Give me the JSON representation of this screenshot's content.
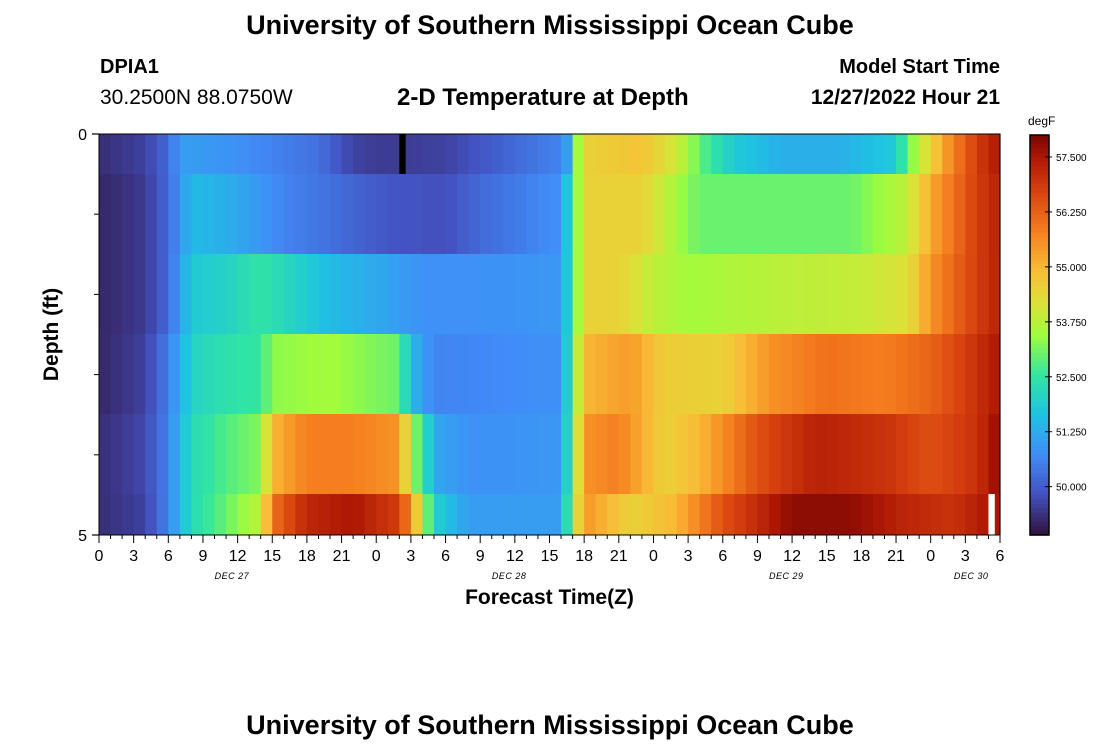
{
  "header": {
    "title": "University of Southern Mississippi Ocean Cube",
    "station_id": "DPIA1",
    "coordinates": "30.2500N  88.0750W",
    "subtitle": "2-D Temperature at Depth",
    "model_start_label": "Model Start Time",
    "model_start_value": "12/27/2022 Hour 21"
  },
  "footer": {
    "title": "University of Southern Mississippi Ocean Cube"
  },
  "chart_data": {
    "type": "heatmap",
    "title": "2-D Temperature at Depth",
    "xlabel": "Forecast Time(Z)",
    "ylabel": "Depth (ft)",
    "unit": "degF",
    "x_hour_start": 0,
    "x_hour_end": 78,
    "x_hour_step": 1,
    "x_tick_labels": [
      "0",
      "3",
      "6",
      "9",
      "12",
      "15",
      "18",
      "21",
      "0",
      "3",
      "6",
      "9",
      "12",
      "15",
      "18",
      "21",
      "0",
      "3",
      "6",
      "9",
      "12",
      "15",
      "18",
      "21",
      "0",
      "3",
      "6"
    ],
    "date_labels": [
      {
        "label": "DEC 27",
        "x_hour": 11.5
      },
      {
        "label": "DEC 28",
        "x_hour": 35.5
      },
      {
        "label": "DEC 29",
        "x_hour": 59.5
      },
      {
        "label": "DEC 30",
        "x_hour": 75.5
      }
    ],
    "y_tick_labels": [
      "0",
      "5"
    ],
    "ylim": [
      0,
      5
    ],
    "y_minor_ticks": [
      1,
      2,
      3,
      4
    ],
    "colorbar": {
      "label": "degF",
      "min": 48.9,
      "max": 58.0,
      "ticks": [
        "50.000",
        "51.250",
        "52.500",
        "53.750",
        "55.000",
        "56.250",
        "57.500"
      ]
    },
    "rows": [
      {
        "depth_band": "0-0.5",
        "knots": [
          [
            0,
            49.3
          ],
          [
            4,
            49.6
          ],
          [
            6,
            50.2
          ],
          [
            7,
            51.0
          ],
          [
            8,
            51.0
          ],
          [
            12,
            50.8
          ],
          [
            19,
            50.3
          ],
          [
            22,
            49.6
          ],
          [
            25,
            49.5
          ],
          [
            30,
            49.6
          ],
          [
            32,
            49.8
          ],
          [
            40,
            50.6
          ],
          [
            40.5,
            51.0
          ],
          [
            41,
            52.5
          ],
          [
            42,
            54.5
          ],
          [
            47,
            54.8
          ],
          [
            50,
            54.0
          ],
          [
            53,
            52.5
          ],
          [
            55,
            51.8
          ],
          [
            59,
            51.3
          ],
          [
            64,
            51.3
          ],
          [
            69,
            51.8
          ],
          [
            70,
            53.0
          ],
          [
            72,
            54.5
          ],
          [
            74,
            55.8
          ],
          [
            76,
            56.8
          ],
          [
            78,
            57.5
          ]
        ]
      },
      {
        "depth_band": "0.5-1.5",
        "knots": [
          [
            0,
            49.2
          ],
          [
            4,
            49.5
          ],
          [
            6,
            50.2
          ],
          [
            8,
            51.5
          ],
          [
            12,
            51.2
          ],
          [
            16,
            50.6
          ],
          [
            20,
            50.3
          ],
          [
            25,
            49.9
          ],
          [
            30,
            49.8
          ],
          [
            33,
            50.2
          ],
          [
            40,
            50.8
          ],
          [
            41,
            52.5
          ],
          [
            42,
            54.5
          ],
          [
            47,
            54.5
          ],
          [
            50,
            53.5
          ],
          [
            52,
            53.0
          ],
          [
            65,
            53.0
          ],
          [
            70,
            53.8
          ],
          [
            72,
            55.2
          ],
          [
            74,
            56.0
          ],
          [
            76,
            56.8
          ],
          [
            78,
            57.3
          ]
        ]
      },
      {
        "depth_band": "1.5-2.5",
        "knots": [
          [
            0,
            49.2
          ],
          [
            4,
            49.5
          ],
          [
            6,
            50.2
          ],
          [
            8,
            51.8
          ],
          [
            11,
            52.0
          ],
          [
            14,
            52.5
          ],
          [
            17,
            52.0
          ],
          [
            20,
            51.5
          ],
          [
            24,
            51.2
          ],
          [
            28,
            50.8
          ],
          [
            32,
            50.8
          ],
          [
            40,
            50.9
          ],
          [
            41,
            52.5
          ],
          [
            42,
            54.5
          ],
          [
            45,
            54.5
          ],
          [
            48,
            53.8
          ],
          [
            51,
            53.5
          ],
          [
            60,
            53.8
          ],
          [
            66,
            53.9
          ],
          [
            70,
            54.2
          ],
          [
            72,
            55.5
          ],
          [
            75,
            56.5
          ],
          [
            78,
            57.3
          ]
        ]
      },
      {
        "depth_band": "2.5-3.5",
        "knots": [
          [
            0,
            49.2
          ],
          [
            4,
            49.6
          ],
          [
            6,
            50.5
          ],
          [
            8,
            52.0
          ],
          [
            11,
            52.4
          ],
          [
            14,
            52.5
          ],
          [
            15,
            53.3
          ],
          [
            20,
            53.5
          ],
          [
            26,
            53.0
          ],
          [
            27,
            51.5
          ],
          [
            29,
            50.6
          ],
          [
            40,
            50.8
          ],
          [
            41,
            52.8
          ],
          [
            42,
            55.0
          ],
          [
            46,
            55.4
          ],
          [
            49,
            54.6
          ],
          [
            54,
            54.5
          ],
          [
            58,
            55.5
          ],
          [
            63,
            56.0
          ],
          [
            68,
            55.8
          ],
          [
            72,
            56.2
          ],
          [
            75,
            56.8
          ],
          [
            78,
            57.5
          ]
        ]
      },
      {
        "depth_band": "3.5-4.5",
        "knots": [
          [
            0,
            49.3
          ],
          [
            4,
            49.7
          ],
          [
            6,
            50.6
          ],
          [
            8,
            52.2
          ],
          [
            11,
            52.8
          ],
          [
            14,
            53.2
          ],
          [
            15,
            55.0
          ],
          [
            18,
            55.8
          ],
          [
            22,
            55.8
          ],
          [
            26,
            55.5
          ],
          [
            27,
            53.5
          ],
          [
            28,
            52.6
          ],
          [
            29,
            51.2
          ],
          [
            32,
            50.8
          ],
          [
            40,
            50.9
          ],
          [
            41,
            53.0
          ],
          [
            42,
            55.5
          ],
          [
            45,
            55.8
          ],
          [
            49,
            54.5
          ],
          [
            52,
            55.0
          ],
          [
            57,
            56.5
          ],
          [
            62,
            57.3
          ],
          [
            68,
            57.0
          ],
          [
            72,
            56.5
          ],
          [
            76,
            57.0
          ],
          [
            78,
            57.8
          ]
        ]
      },
      {
        "depth_band": "4.5-5",
        "knots": [
          [
            0,
            49.3
          ],
          [
            4,
            49.6
          ],
          [
            6,
            50.6
          ],
          [
            8,
            52.2
          ],
          [
            11,
            53.0
          ],
          [
            14,
            53.8
          ],
          [
            15,
            56.0
          ],
          [
            18,
            57.2
          ],
          [
            22,
            57.5
          ],
          [
            26,
            56.8
          ],
          [
            27,
            55.5
          ],
          [
            28,
            53.8
          ],
          [
            29,
            52.0
          ],
          [
            32,
            51.0
          ],
          [
            40,
            51.0
          ],
          [
            41,
            53.5
          ],
          [
            42,
            55.5
          ],
          [
            46,
            54.5
          ],
          [
            50,
            55.0
          ],
          [
            54,
            56.5
          ],
          [
            60,
            57.8
          ],
          [
            65,
            57.8
          ],
          [
            70,
            57.2
          ],
          [
            74,
            57.0
          ],
          [
            77,
            57.5
          ],
          [
            78,
            57.5
          ]
        ]
      }
    ],
    "missing_cells": [
      {
        "row": 0,
        "x_hour": 26,
        "color": "#000000"
      },
      {
        "row": 5,
        "x_hour": 77,
        "color": "#ffffff"
      }
    ]
  }
}
